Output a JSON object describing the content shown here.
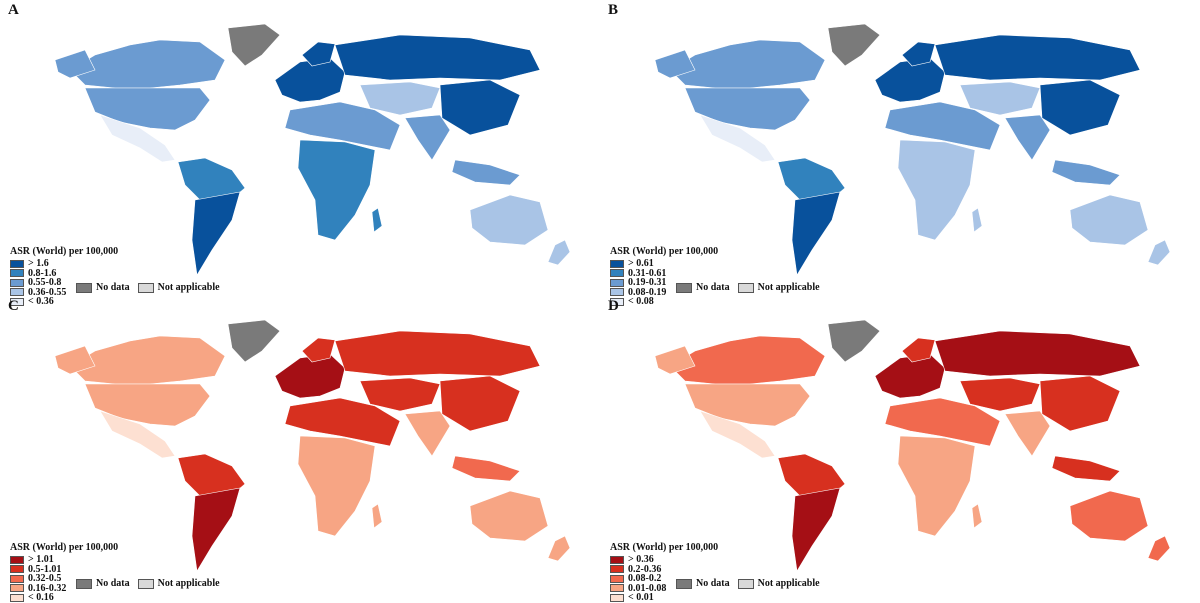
{
  "panels": [
    {
      "letter": "A",
      "legend_title": "ASR (World) per 100,000",
      "colors": [
        "#08519c",
        "#3182bd",
        "#6b9bd1",
        "#a9c4e6",
        "#e8eef8"
      ],
      "classes": [
        "> 1.6",
        "0.8-1.6",
        "0.55-0.8",
        "0.36-0.55",
        "< 0.36"
      ]
    },
    {
      "letter": "B",
      "legend_title": "ASR (World) per 100,000",
      "colors": [
        "#08519c",
        "#3182bd",
        "#6b9bd1",
        "#a9c4e6",
        "#e8eef8"
      ],
      "classes": [
        "> 0.61",
        "0.31-0.61",
        "0.19-0.31",
        "0.08-0.19",
        "< 0.08"
      ]
    },
    {
      "letter": "C",
      "legend_title": "ASR (World) per 100,000",
      "colors": [
        "#a50f15",
        "#d7301f",
        "#f1694e",
        "#f7a584",
        "#fde0d2"
      ],
      "classes": [
        "> 1.01",
        "0.5-1.01",
        "0.32-0.5",
        "0.16-0.32",
        "< 0.16"
      ]
    },
    {
      "letter": "D",
      "legend_title": "ASR (World) per 100,000",
      "colors": [
        "#a50f15",
        "#d7301f",
        "#f1694e",
        "#f7a584",
        "#fde0d2"
      ],
      "classes": [
        "> 0.36",
        "0.2-0.36",
        "0.08-0.2",
        "0.01-0.08",
        "< 0.01"
      ]
    }
  ],
  "no_data_label": "No data",
  "not_applicable_label": "Not applicable",
  "no_data_color": "#7a7a7a",
  "not_applicable_color": "#d9d9d9",
  "region_classes": [
    [
      2,
      2,
      2,
      4,
      1,
      0,
      0,
      0,
      0,
      2,
      1,
      3,
      2,
      0,
      4,
      3,
      2
    ],
    [
      2,
      2,
      2,
      4,
      1,
      0,
      0,
      0,
      0,
      2,
      3,
      3,
      2,
      0,
      4,
      3,
      2
    ],
    [
      3,
      3,
      3,
      4,
      1,
      0,
      0,
      1,
      1,
      1,
      3,
      1,
      3,
      1,
      4,
      3,
      2
    ],
    [
      2,
      3,
      3,
      4,
      1,
      0,
      0,
      1,
      0,
      2,
      3,
      1,
      3,
      1,
      4,
      2,
      1
    ]
  ]
}
